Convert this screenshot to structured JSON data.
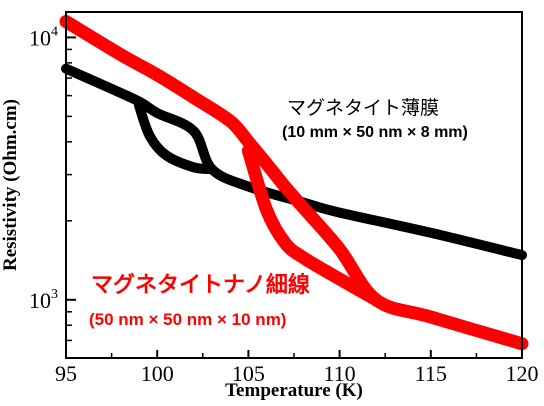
{
  "chart_data": {
    "type": "line",
    "xlabel": "Temperature (K)",
    "ylabel": "Resistivity (Ohm.cm)",
    "xlim": [
      95,
      120
    ],
    "ylim": [
      600,
      12500
    ],
    "yscale": "log",
    "x_ticks": [
      "95",
      "100",
      "105",
      "110",
      "115",
      "120"
    ],
    "y_ticks": [
      {
        "value": 10000,
        "base": "10",
        "exp": "4"
      },
      {
        "value": 1000,
        "base": "10",
        "exp": "3"
      }
    ],
    "series": [
      {
        "name": "マグネタイト薄膜",
        "color": "#000000",
        "x": [
          95,
          97,
          99,
          100,
          102,
          103,
          105,
          108,
          110,
          115,
          120
        ],
        "y": [
          7600,
          6600,
          5700,
          5150,
          4400,
          3150,
          2700,
          2350,
          2150,
          1800,
          1480
        ]
      },
      {
        "name": "",
        "color": "#000000",
        "x": [
          99,
          99.6,
          100.5,
          102,
          103
        ],
        "y": [
          5500,
          4200,
          3550,
          3200,
          3150
        ]
      },
      {
        "name": "マグネタイトナノ細線",
        "color": "#ff0000",
        "x": [
          95,
          98,
          100,
          102,
          104,
          105,
          106,
          107,
          108,
          110,
          112,
          115,
          120
        ],
        "y": [
          11500,
          8600,
          7200,
          5900,
          4800,
          4000,
          3300,
          2700,
          2250,
          1560,
          1000,
          860,
          680
        ]
      },
      {
        "name": "",
        "color": "#ff0000",
        "x": [
          105,
          106,
          107,
          108,
          110,
          112
        ],
        "y": [
          3700,
          2200,
          1650,
          1450,
          1200,
          1000
        ]
      }
    ],
    "annotations": {
      "film_title": "マグネタイト薄膜",
      "film_dims": "(10 mm × 50 nm × 8 mm)",
      "wire_title": "マグネタイトナノ細線",
      "wire_dims": "(50 nm × 50 nm × 10 nm)"
    },
    "grid": false,
    "legend": "none"
  }
}
